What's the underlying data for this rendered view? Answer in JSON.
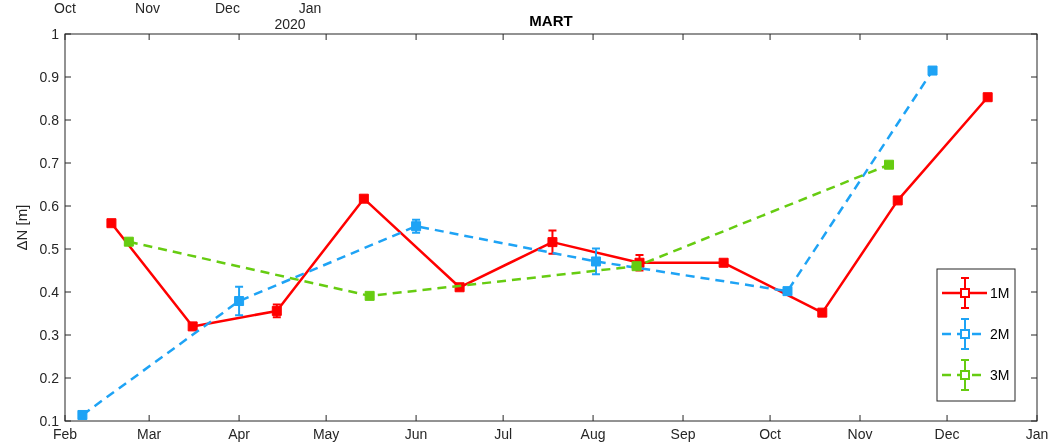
{
  "chart_data": {
    "type": "line",
    "title": "MART",
    "ylabel": "ΔN [m]",
    "xlim": [
      "2020-02-01",
      "2021-01-01"
    ],
    "xticks": [
      {
        "value": "2020-02-01",
        "label": "Feb"
      },
      {
        "value": "2020-03-01",
        "label": "Mar"
      },
      {
        "value": "2020-04-01",
        "label": "Apr"
      },
      {
        "value": "2020-05-01",
        "label": "May"
      },
      {
        "value": "2020-06-01",
        "label": "Jun"
      },
      {
        "value": "2020-07-01",
        "label": "Jul"
      },
      {
        "value": "2020-08-01",
        "label": "Aug"
      },
      {
        "value": "2020-09-01",
        "label": "Sep"
      },
      {
        "value": "2020-10-01",
        "label": "Oct"
      },
      {
        "value": "2020-11-01",
        "label": "Nov"
      },
      {
        "value": "2020-12-01",
        "label": "Dec"
      },
      {
        "value": "2021-01-01",
        "label": "Jan"
      }
    ],
    "x2lim": [
      "2019-10-01",
      "2020-09-30"
    ],
    "x2ticks": [
      {
        "value": "2019-10-01",
        "label": "Oct"
      },
      {
        "value": "2019-11-01",
        "label": "Nov"
      },
      {
        "value": "2019-12-01",
        "label": "Dec"
      },
      {
        "value": "2020-01-01",
        "label": "Jan"
      }
    ],
    "annotations": [
      "2020"
    ],
    "ylim": [
      0.1,
      1
    ],
    "yticks": [
      0.1,
      0.2,
      0.3,
      0.4,
      0.5,
      0.6,
      0.7,
      0.8,
      0.9,
      1
    ],
    "grid": false,
    "legend": "bottom right",
    "marker": "square",
    "series": [
      {
        "name": "1M",
        "color": "#ff0000",
        "line_style": "solid",
        "x": [
          "2020-02-17",
          "2020-03-16",
          "2020-04-14",
          "2020-05-14",
          "2020-06-16",
          "2020-07-18",
          "2020-08-17",
          "2020-09-15",
          "2020-10-19",
          "2020-11-14",
          "2020-12-15"
        ],
        "values": [
          0.56,
          0.32,
          0.356,
          0.617,
          0.411,
          0.516,
          0.468,
          0.468,
          0.352,
          0.613,
          0.853
        ],
        "errors": [
          null,
          null,
          0.015,
          null,
          null,
          0.027,
          0.018,
          null,
          null,
          null,
          null
        ]
      },
      {
        "name": "2M",
        "color": "#1ea3f5",
        "line_style": "dashed",
        "x": [
          "2020-02-07",
          "2020-04-01",
          "2020-06-01",
          "2020-08-02",
          "2020-10-07",
          "2020-11-26"
        ],
        "values": [
          0.114,
          0.379,
          0.553,
          0.471,
          0.402,
          0.915
        ],
        "errors": [
          null,
          0.033,
          0.015,
          0.03,
          null,
          null
        ]
      },
      {
        "name": "3M",
        "color": "#66cc11",
        "line_style": "dashed",
        "x": [
          "2020-02-23",
          "2020-05-16",
          "2020-08-16",
          "2020-11-11"
        ],
        "values": [
          0.517,
          0.391,
          0.46,
          0.696
        ],
        "errors": [
          null,
          null,
          null,
          null
        ]
      }
    ]
  }
}
